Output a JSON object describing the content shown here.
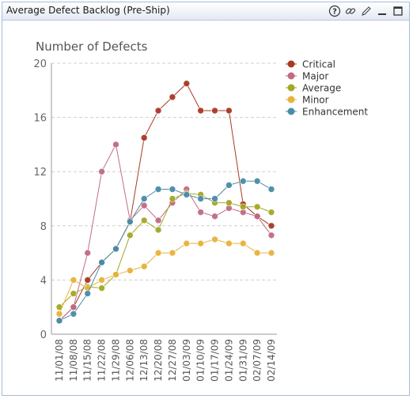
{
  "window": {
    "title": "Average Defect Backlog (Pre-Ship)",
    "icons": [
      "help-icon",
      "link-icon",
      "edit-icon",
      "minimize-icon",
      "maximize-icon"
    ]
  },
  "chart_data": {
    "type": "line",
    "title": "Number of Defects",
    "xlabel": "",
    "ylabel": "",
    "ylim": [
      0,
      20
    ],
    "yticks": [
      0,
      4,
      8,
      12,
      16,
      20
    ],
    "grid": "horizontal dashed",
    "legend": "right",
    "categories": [
      "11/01/08",
      "11/08/08",
      "11/15/08",
      "11/22/08",
      "11/29/08",
      "12/06/08",
      "12/13/08",
      "12/20/08",
      "12/27/08",
      "01/03/09",
      "01/10/09",
      "01/17/09",
      "01/24/09",
      "01/31/09",
      "02/07/09",
      "02/14/09"
    ],
    "series": [
      {
        "name": "Critical",
        "color": "#a83a24",
        "values": [
          1,
          2,
          4,
          5.3,
          6.3,
          8.3,
          14.5,
          16.5,
          17.5,
          18.5,
          16.5,
          16.5,
          16.5,
          9.6,
          8.7,
          8
        ]
      },
      {
        "name": "Major",
        "color": "#c06c84",
        "values": [
          1,
          2,
          6,
          12,
          14,
          8.4,
          9.5,
          8.4,
          9.7,
          10.7,
          9,
          8.7,
          9.3,
          9,
          8.7,
          7.3
        ]
      },
      {
        "name": "Average",
        "color": "#a3a825",
        "values": [
          2,
          3,
          3.5,
          3.4,
          4.4,
          7.3,
          8.4,
          7.7,
          10,
          10.4,
          10.3,
          9.7,
          9.7,
          9.4,
          9.4,
          9
        ]
      },
      {
        "name": "Minor",
        "color": "#e8b33c",
        "values": [
          1.5,
          4,
          3.4,
          4,
          4.4,
          4.7,
          5,
          6,
          6,
          6.7,
          6.7,
          7,
          6.7,
          6.7,
          6,
          6
        ]
      },
      {
        "name": "Enhancement",
        "color": "#4a8ca8",
        "values": [
          1,
          1.5,
          3,
          5.3,
          6.3,
          8.3,
          10,
          10.7,
          10.7,
          10.3,
          10,
          10,
          11,
          11.3,
          11.3,
          10.7
        ]
      }
    ]
  }
}
